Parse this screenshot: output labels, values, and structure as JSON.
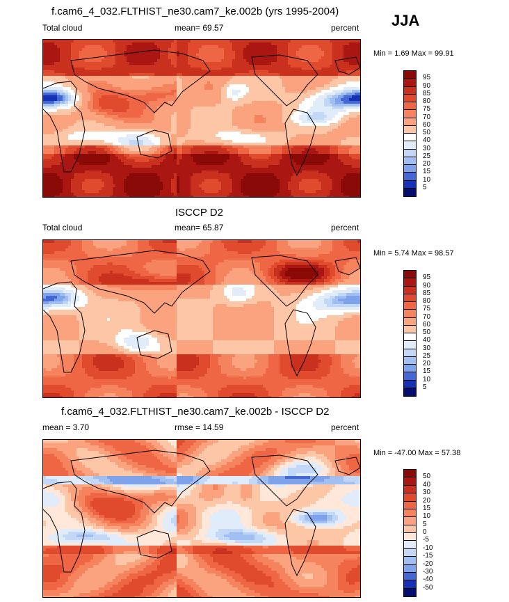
{
  "season": "JJA",
  "palette": {
    "pos": [
      "#FFE0CC",
      "#FDC6A6",
      "#FBA37E",
      "#F5835E",
      "#EE6643",
      "#E04A2D",
      "#C9301E",
      "#AA1611",
      "#8A0A07"
    ],
    "neg": [
      "#E1ECFA",
      "#C3D8F6",
      "#A1BFF1",
      "#7FA3EA",
      "#5F86E0",
      "#4368D6",
      "#2B4CC8",
      "#1630B6",
      "#081A95",
      "#040E6E"
    ]
  },
  "panels": [
    {
      "title": "f.cam6_4_032.FLTHIST_ne30.cam7_ke.002b (yrs 1995-2004)",
      "left_label": "Total cloud",
      "center_label": "mean=  69.57",
      "right_label": "percent",
      "minmax": "Min =    1.69 Max =  99.91",
      "colorbar": {
        "levels": [
          "95",
          "90",
          "85",
          "80",
          "75",
          "70",
          "60",
          "50",
          "40",
          "30",
          "25",
          "20",
          "15",
          "10",
          "5"
        ],
        "colors": [
          "#8A0A07",
          "#AA1611",
          "#C9301E",
          "#E04A2D",
          "#EE6643",
          "#F5835E",
          "#FBA37E",
          "#FDC6A6",
          "#FFFFFF",
          "#E1ECFA",
          "#C3D8F6",
          "#A1BFF1",
          "#7FA3EA",
          "#4368D6",
          "#1630B6",
          "#040E6E"
        ]
      },
      "field": {
        "type": "total_cloud_model",
        "mean": 69.57
      }
    },
    {
      "title": "ISCCP D2",
      "left_label": "Total cloud",
      "center_label": "mean=  65.87",
      "right_label": "percent",
      "minmax": "Min =    5.74 Max =  98.57",
      "colorbar": {
        "levels": [
          "95",
          "90",
          "85",
          "80",
          "75",
          "70",
          "60",
          "50",
          "40",
          "30",
          "25",
          "20",
          "15",
          "10",
          "5"
        ],
        "colors": [
          "#8A0A07",
          "#AA1611",
          "#C9301E",
          "#E04A2D",
          "#EE6643",
          "#F5835E",
          "#FBA37E",
          "#FDC6A6",
          "#FFFFFF",
          "#E1ECFA",
          "#C3D8F6",
          "#A1BFF1",
          "#7FA3EA",
          "#4368D6",
          "#1630B6",
          "#040E6E"
        ]
      },
      "field": {
        "type": "total_cloud_obs",
        "mean": 65.87
      }
    },
    {
      "title": "f.cam6_4_032.FLTHIST_ne30.cam7_ke.002b - ISCCP D2",
      "left_label": "mean =    3.70",
      "center_label": "rmse =  14.59",
      "right_label": "percent",
      "minmax": "Min = -47.00 Max =  57.38",
      "colorbar": {
        "levels": [
          "50",
          "40",
          "30",
          "20",
          "15",
          "10",
          "5",
          "0",
          "-5",
          "-10",
          "-15",
          "-20",
          "-30",
          "-40",
          "-50"
        ],
        "colors": [
          "#8A0A07",
          "#AA1611",
          "#C9301E",
          "#E04A2D",
          "#EE6643",
          "#F5835E",
          "#FBA37E",
          "#FDC6A6",
          "#FFE8DA",
          "#E1ECFA",
          "#C3D8F6",
          "#A1BFF1",
          "#7FA3EA",
          "#4368D6",
          "#1630B6",
          "#040E6E"
        ]
      },
      "field": {
        "type": "difference",
        "mean": 3.7,
        "rmse": 14.59
      }
    }
  ]
}
